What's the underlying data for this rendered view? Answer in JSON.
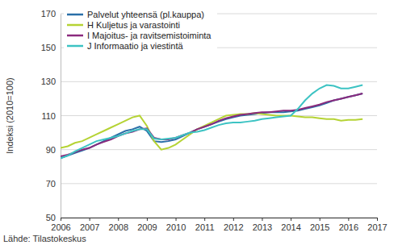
{
  "chart_data": {
    "type": "line",
    "y_label": "Indeksi (2010=100)",
    "source": "Lähde: Tilastokeskus",
    "x": [
      2006,
      2006.25,
      2006.5,
      2006.75,
      2007,
      2007.25,
      2007.5,
      2007.75,
      2008,
      2008.25,
      2008.5,
      2008.75,
      2009,
      2009.25,
      2009.5,
      2009.75,
      2010,
      2010.25,
      2010.5,
      2010.75,
      2011,
      2011.25,
      2011.5,
      2011.75,
      2012,
      2012.25,
      2012.5,
      2012.75,
      2013,
      2013.25,
      2013.5,
      2013.75,
      2014,
      2014.25,
      2014.5,
      2014.75,
      2015,
      2015.25,
      2015.5,
      2015.75,
      2016,
      2016.25,
      2016.5
    ],
    "series": [
      {
        "name": "Palvelut yhteensä (pl.kauppa)",
        "color": "#2a6fa8",
        "values": [
          85,
          86.5,
          88,
          89.5,
          91,
          93,
          95,
          97,
          99,
          101,
          102,
          103.5,
          101,
          95,
          94.5,
          95,
          96,
          98,
          100,
          102,
          103.5,
          105,
          106.5,
          108,
          109,
          110,
          110.5,
          111,
          111.5,
          112,
          112,
          112,
          112.5,
          113,
          114,
          115,
          116,
          117.5,
          119,
          120,
          121,
          122,
          123
        ]
      },
      {
        "name": "H Kuljetus ja varastointi",
        "color": "#b5d334",
        "values": [
          91,
          92,
          94,
          95,
          97,
          99,
          101,
          103,
          105,
          107,
          109,
          110,
          104,
          95,
          90,
          91,
          93,
          96,
          99,
          102,
          104,
          106,
          108,
          110,
          110.5,
          111,
          111,
          111.5,
          111,
          110.5,
          110,
          110,
          110,
          109.5,
          109,
          109,
          108.5,
          108,
          108,
          107,
          107.5,
          107.5,
          108
        ]
      },
      {
        "name": "I Majoitus- ja ravitsemistoiminta",
        "color": "#8b2a7d",
        "values": [
          86,
          87,
          88.5,
          90,
          91,
          93,
          94.5,
          96,
          98,
          99.5,
          100.5,
          102,
          102.5,
          97,
          96,
          96,
          97,
          98.5,
          100,
          102,
          103.5,
          105,
          107,
          108.5,
          109.5,
          110.5,
          111,
          111.5,
          112,
          112,
          112.5,
          113,
          113,
          113.5,
          114.5,
          115.5,
          116.5,
          118,
          119,
          120,
          121,
          122,
          123
        ]
      },
      {
        "name": "J Informaatio ja viestintä",
        "color": "#3cc3c3",
        "values": [
          85,
          86.5,
          89,
          91,
          93,
          95,
          96,
          97,
          98,
          99.5,
          101,
          102,
          102,
          96.5,
          96,
          96.5,
          97,
          98.5,
          100,
          100.5,
          101.5,
          103,
          104.5,
          105.5,
          106,
          106,
          106.5,
          107,
          108,
          108.5,
          109,
          109.5,
          110,
          114,
          119,
          123,
          126,
          128,
          127.5,
          126,
          126,
          127,
          128
        ]
      }
    ],
    "xlim": [
      2006,
      2017
    ],
    "xticks": [
      2006,
      2007,
      2008,
      2009,
      2010,
      2011,
      2012,
      2013,
      2014,
      2015,
      2016,
      2017
    ],
    "ylim": [
      50,
      170
    ],
    "yticks": [
      50,
      70,
      90,
      110,
      130,
      150,
      170
    ],
    "grid": true,
    "legend": "top-left"
  }
}
